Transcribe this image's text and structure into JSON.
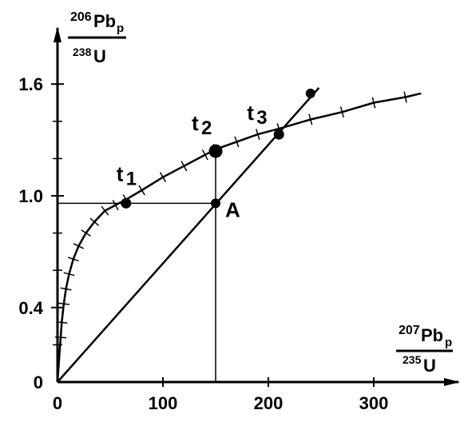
{
  "chart_data": {
    "type": "line",
    "title": "",
    "xlim": [
      0,
      350
    ],
    "ylim": [
      0,
      1.75
    ],
    "x_ticks": [
      {
        "value": 0,
        "label": "0"
      },
      {
        "value": 100,
        "label": "100"
      },
      {
        "value": 200,
        "label": "200"
      },
      {
        "value": 300,
        "label": "300"
      }
    ],
    "y_ticks": [
      {
        "value": 0,
        "label": "0"
      },
      {
        "value": 0.4,
        "label": "0.4"
      },
      {
        "value": 1.0,
        "label": "1.0"
      },
      {
        "value": 1.6,
        "label": "1.6"
      }
    ],
    "x_axis_label": {
      "sup": "207",
      "main": "Pb",
      "sub": "p",
      "den_sup": "235",
      "den_main": "U"
    },
    "y_axis_label": {
      "sup": "206",
      "main": "Pb",
      "sub": "p",
      "den_sup": "238",
      "den_main": "U"
    },
    "concordia": {
      "name": "",
      "points": [
        [
          0,
          0
        ],
        [
          1,
          0.08
        ],
        [
          2,
          0.16
        ],
        [
          3,
          0.24
        ],
        [
          4,
          0.32
        ],
        [
          6,
          0.42
        ],
        [
          8,
          0.5
        ],
        [
          11,
          0.58
        ],
        [
          15,
          0.66
        ],
        [
          20,
          0.73
        ],
        [
          27,
          0.8
        ],
        [
          35,
          0.86
        ],
        [
          45,
          0.92
        ],
        [
          55,
          0.95
        ],
        [
          65,
          0.98
        ],
        [
          80,
          1.03
        ],
        [
          100,
          1.1
        ],
        [
          120,
          1.16
        ],
        [
          140,
          1.22
        ],
        [
          150,
          1.25
        ],
        [
          170,
          1.29
        ],
        [
          190,
          1.33
        ],
        [
          210,
          1.36
        ],
        [
          240,
          1.41
        ],
        [
          270,
          1.45
        ],
        [
          300,
          1.5
        ],
        [
          330,
          1.53
        ],
        [
          345,
          1.55
        ]
      ]
    },
    "discordia": {
      "x": [
        0,
        248
      ],
      "y": [
        0,
        1.58
      ]
    },
    "guides": {
      "point_x": 150,
      "point_y": 0.96
    },
    "points": [
      {
        "label": "t",
        "sub": "1",
        "x": 65,
        "y": 0.96
      },
      {
        "label": "t",
        "sub": "2",
        "x": 150,
        "y": 1.24
      },
      {
        "label": "t",
        "sub": "3",
        "x": 210,
        "y": 1.33
      },
      {
        "label": "A",
        "sub": "",
        "x": 150,
        "y": 0.96
      },
      {
        "label": "",
        "sub": "",
        "x": 240,
        "y": 1.55
      }
    ]
  }
}
